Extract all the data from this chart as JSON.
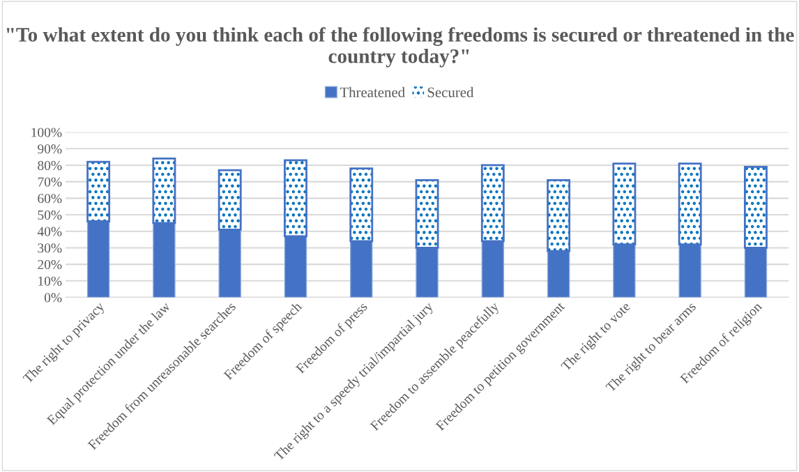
{
  "chart_data": {
    "type": "bar",
    "stacked": true,
    "title": "\"To what extent do you think each of the following freedoms is secured or threatened in the country today?\"",
    "categories": [
      "The right to privacy",
      "Equal protection under the law",
      "Freedom from unreasonable searches",
      "Freedom of speech",
      "Freedom of press",
      "The right to a speedy trial/impartial jury",
      "Freedom to assemble peacefully",
      "Freedom to petition government",
      "The right to vote",
      "The right to bear arms",
      "Freedom of religion"
    ],
    "series": [
      {
        "name": "Threatened",
        "color": "#4472c4",
        "values": [
          46,
          45,
          41,
          37,
          34,
          30,
          34,
          28,
          32,
          32,
          30
        ]
      },
      {
        "name": "Secured",
        "color": "#0070c0",
        "values": [
          36,
          39,
          36,
          46,
          44,
          41,
          46,
          43,
          49,
          49,
          49
        ]
      }
    ],
    "ylim": [
      0,
      100
    ],
    "yticks": [
      {
        "value": 0,
        "label": "0%"
      },
      {
        "value": 10,
        "label": "10%"
      },
      {
        "value": 20,
        "label": "20%"
      },
      {
        "value": 30,
        "label": "30%"
      },
      {
        "value": 40,
        "label": "40%"
      },
      {
        "value": 50,
        "label": "50%"
      },
      {
        "value": 60,
        "label": "60%"
      },
      {
        "value": 70,
        "label": "70%"
      },
      {
        "value": 80,
        "label": "80%"
      },
      {
        "value": 90,
        "label": "90%"
      },
      {
        "value": 100,
        "label": "100%"
      }
    ],
    "grid": "y",
    "legend": "top"
  }
}
